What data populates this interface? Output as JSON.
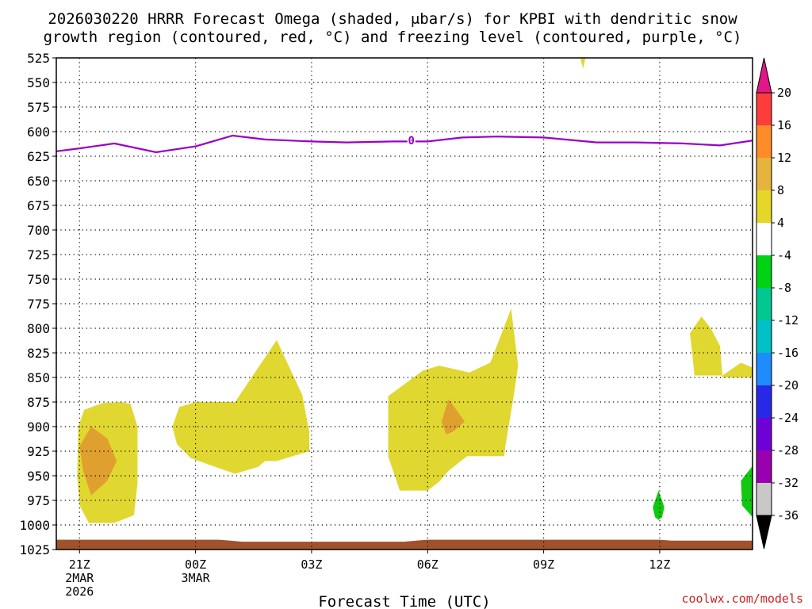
{
  "chart_data": {
    "type": "contour",
    "title_line1": "2026030220 HRRR Forecast Omega (shaded, μbar/s) for KPBI with dendritic snow",
    "title_line2": "growth region (contoured, red, °C) and freezing level (contoured, purple, °C)",
    "xlabel": "Forecast Time (UTC)",
    "credit": "coolwx.com/models",
    "xlim": [
      -1,
      29
    ],
    "ylim": [
      1025,
      525
    ],
    "yticks": [
      525,
      550,
      575,
      600,
      625,
      650,
      675,
      700,
      725,
      750,
      775,
      800,
      825,
      850,
      875,
      900,
      925,
      950,
      975,
      1000,
      1025
    ],
    "xticks": [
      {
        "t": 0,
        "lines": [
          "21Z",
          "2MAR",
          "2026"
        ]
      },
      {
        "t": 5,
        "lines": [
          "00Z",
          "3MAR"
        ]
      },
      {
        "t": 10,
        "lines": [
          "03Z"
        ]
      },
      {
        "t": 15,
        "lines": [
          "06Z"
        ]
      },
      {
        "t": 20,
        "lines": [
          "09Z"
        ]
      },
      {
        "t": 25,
        "lines": [
          "12Z"
        ]
      }
    ],
    "freezing_level": {
      "label": "0",
      "label_point": [
        14.3,
        609
      ],
      "points": [
        [
          -1,
          620
        ],
        [
          0,
          617
        ],
        [
          1.5,
          612
        ],
        [
          3.3,
          621
        ],
        [
          5,
          615
        ],
        [
          6.6,
          604
        ],
        [
          8,
          608
        ],
        [
          10,
          610
        ],
        [
          11.5,
          611
        ],
        [
          13.5,
          610
        ],
        [
          15,
          610
        ],
        [
          16.5,
          606
        ],
        [
          18,
          605
        ],
        [
          20,
          606
        ],
        [
          22.3,
          611
        ],
        [
          24,
          611
        ],
        [
          26,
          612
        ],
        [
          27.6,
          614
        ],
        [
          29,
          609
        ]
      ]
    },
    "omega_regions": [
      {
        "value": 6,
        "color": "#e0d830",
        "points": [
          [
            -0.05,
            900
          ],
          [
            0.2,
            883
          ],
          [
            1,
            876
          ],
          [
            1.8,
            875
          ],
          [
            2.2,
            877
          ],
          [
            2.5,
            900
          ],
          [
            2.5,
            958
          ],
          [
            2.35,
            990
          ],
          [
            1.5,
            998
          ],
          [
            0.4,
            998
          ],
          [
            0,
            980
          ],
          [
            -0.1,
            950
          ]
        ]
      },
      {
        "value": 10,
        "color": "#e0a030",
        "points": [
          [
            0,
            920
          ],
          [
            0.5,
            900
          ],
          [
            1.2,
            912
          ],
          [
            1.6,
            935
          ],
          [
            1.2,
            955
          ],
          [
            0.5,
            970
          ],
          [
            0.15,
            945
          ]
        ]
      },
      {
        "value": 6,
        "color": "#e0d830",
        "points": [
          [
            4,
            900
          ],
          [
            4.3,
            880
          ],
          [
            5,
            875
          ],
          [
            6.7,
            875
          ],
          [
            8.5,
            812
          ],
          [
            9.6,
            868
          ],
          [
            9.9,
            905
          ],
          [
            9.9,
            925
          ],
          [
            8.5,
            935
          ],
          [
            8,
            935
          ],
          [
            7.7,
            941
          ],
          [
            6.7,
            948
          ],
          [
            5.5,
            938
          ],
          [
            4.8,
            932
          ],
          [
            4.2,
            918
          ]
        ]
      },
      {
        "value": 6,
        "color": "#e0d830",
        "points": [
          [
            13.3,
            869
          ],
          [
            14.8,
            843
          ],
          [
            15.5,
            838
          ],
          [
            16.8,
            845
          ],
          [
            17.7,
            835
          ],
          [
            18.6,
            780
          ],
          [
            18.9,
            838
          ],
          [
            18.7,
            870
          ],
          [
            18.35,
            920
          ],
          [
            18.3,
            930
          ],
          [
            16.7,
            930
          ],
          [
            15.9,
            945
          ],
          [
            15.5,
            956
          ],
          [
            15,
            965
          ],
          [
            13.8,
            965
          ],
          [
            13.3,
            930
          ]
        ]
      },
      {
        "value": 10,
        "color": "#e0a030",
        "points": [
          [
            15.6,
            895
          ],
          [
            15.9,
            872
          ],
          [
            16.3,
            885
          ],
          [
            16.6,
            895
          ],
          [
            16.1,
            905
          ],
          [
            15.8,
            908
          ]
        ]
      },
      {
        "value": 6,
        "color": "#e0d830",
        "points": [
          [
            27.7,
            848
          ],
          [
            28.5,
            835
          ],
          [
            29,
            840
          ],
          [
            29,
            850
          ],
          [
            27.7,
            850
          ]
        ]
      },
      {
        "value": 6,
        "color": "#e0d830",
        "points": [
          [
            26.3,
            805
          ],
          [
            26.8,
            788
          ],
          [
            27.2,
            800
          ],
          [
            27.6,
            818
          ],
          [
            27.7,
            848
          ],
          [
            26.5,
            848
          ],
          [
            26.4,
            825
          ]
        ]
      },
      {
        "value": 6,
        "color": "#e0d830",
        "points": [
          [
            21.6,
            527
          ],
          [
            21.7,
            515
          ],
          [
            21.9,
            515
          ],
          [
            21.8,
            525
          ],
          [
            21.7,
            536
          ]
        ]
      },
      {
        "value": -6,
        "color": "#10c810",
        "points": [
          [
            24.7,
            982
          ],
          [
            24.95,
            965
          ],
          [
            25.2,
            982
          ],
          [
            25.1,
            992
          ],
          [
            24.95,
            995
          ],
          [
            24.8,
            992
          ]
        ]
      },
      {
        "value": -6,
        "color": "#10c810",
        "points": [
          [
            29,
            940
          ],
          [
            28.5,
            955
          ],
          [
            28.55,
            980
          ],
          [
            29,
            992
          ]
        ]
      }
    ],
    "terrain": {
      "color": "#a0522d",
      "points": [
        [
          -1,
          1015
        ],
        [
          6,
          1015
        ],
        [
          6.5,
          1016
        ],
        [
          7,
          1017
        ],
        [
          14,
          1017
        ],
        [
          14.5,
          1016
        ],
        [
          15,
          1015
        ],
        [
          25,
          1015
        ],
        [
          25.5,
          1016
        ],
        [
          29,
          1016
        ],
        [
          29,
          1025
        ],
        [
          -1,
          1025
        ]
      ]
    },
    "colorbar": {
      "colors": [
        "#c8c8c8",
        "#9b00b0",
        "#6e00d8",
        "#2828e8",
        "#1e8cff",
        "#00c0c8",
        "#00c890",
        "#00d214",
        "#ffffff",
        "#e6d628",
        "#e6b43c",
        "#ff8c28",
        "#ff3c3c"
      ],
      "top_color": "#e11687",
      "bottom_color": "#000000",
      "labels": [
        "20",
        "16",
        "12",
        "8",
        "4",
        "-4",
        "-8",
        "-12",
        "-16",
        "-20",
        "-24",
        "-28",
        "-32",
        "-36"
      ]
    }
  }
}
